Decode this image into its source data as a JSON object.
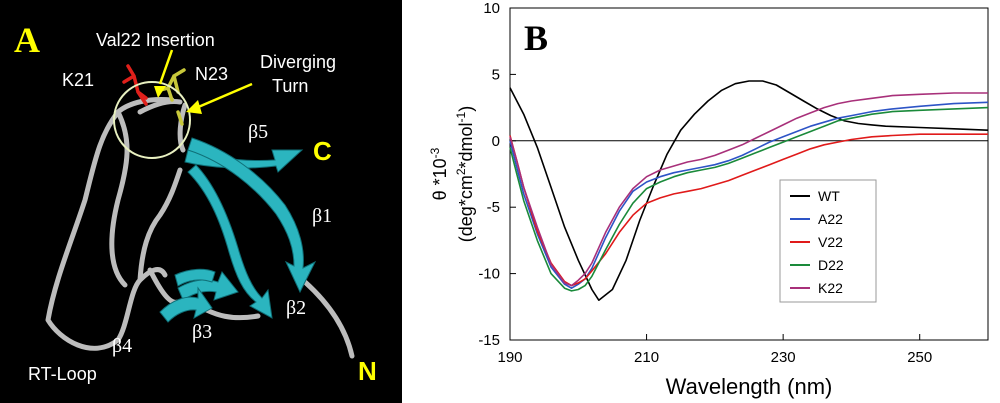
{
  "panel_a": {
    "panel_letter": "A",
    "labels": {
      "insertion": "Val22 Insertion",
      "k21": "K21",
      "n23": "N23",
      "diverging_line1": "Diverging",
      "diverging_line2": "Turn",
      "b5": "β5",
      "b1": "β1",
      "b2": "β2",
      "b3": "β3",
      "b4": "β4",
      "c_term": "C",
      "n_term": "N",
      "rt_loop": "RT-Loop"
    },
    "colors": {
      "background": "#000000",
      "strand": "#2bb5bf",
      "loop": "#bdbdbd",
      "k21_sidechain": "#e0201b",
      "n23_sidechain": "#c8c83a",
      "arrow": "#ffff00",
      "terminus_letters": "#ffff00",
      "circle": "#e8f0c0"
    }
  },
  "chart_data": {
    "type": "line",
    "panel_letter": "B",
    "title": "",
    "xlabel": "Wavelength (nm)",
    "ylabel_line1": "θ *10-3",
    "ylabel_line2": "(deg*cm2*dmol-1)",
    "xlim": [
      190,
      260
    ],
    "ylim": [
      -15,
      10
    ],
    "xticks": [
      190,
      210,
      230,
      250
    ],
    "yticks": [
      -15,
      -10,
      -5,
      0,
      5,
      10
    ],
    "grid": false,
    "legend_position": "center-right",
    "series": [
      {
        "name": "WT",
        "color": "#000000",
        "x": [
          190,
          192,
          194,
          196,
          198,
          200,
          202,
          203,
          205,
          207,
          209,
          211,
          213,
          215,
          217,
          219,
          221,
          223,
          225,
          227,
          229,
          231,
          233,
          235,
          237,
          239,
          241,
          243,
          245,
          250,
          255,
          260
        ],
        "y": [
          4,
          2,
          -0.5,
          -3.5,
          -6.5,
          -9,
          -11.2,
          -12,
          -11.2,
          -9,
          -6,
          -3.4,
          -1,
          0.8,
          2,
          3,
          3.8,
          4.3,
          4.5,
          4.5,
          4.2,
          3.6,
          3,
          2.4,
          1.9,
          1.5,
          1.3,
          1.2,
          1.1,
          1.0,
          0.9,
          0.8
        ]
      },
      {
        "name": "A22",
        "color": "#2d54c6",
        "x": [
          190,
          191,
          192,
          194,
          196,
          198,
          199,
          200,
          201,
          202,
          204,
          206,
          208,
          210,
          212,
          214,
          216,
          218,
          220,
          222,
          224,
          226,
          228,
          230,
          232,
          234,
          236,
          238,
          240,
          243,
          246,
          250,
          255,
          260
        ],
        "y": [
          0,
          -2,
          -4,
          -7,
          -9.5,
          -10.8,
          -11.1,
          -10.8,
          -10.4,
          -9.6,
          -7.3,
          -5.3,
          -3.8,
          -3.1,
          -2.7,
          -2.4,
          -2.2,
          -2,
          -1.8,
          -1.5,
          -1.1,
          -0.6,
          -0.1,
          0.3,
          0.7,
          1.1,
          1.4,
          1.7,
          1.9,
          2.2,
          2.4,
          2.6,
          2.8,
          2.9
        ]
      },
      {
        "name": "V22",
        "color": "#e01a1a",
        "x": [
          190,
          191,
          192,
          194,
          196,
          198,
          199,
          200,
          201,
          202,
          204,
          206,
          208,
          210,
          212,
          214,
          216,
          218,
          220,
          222,
          224,
          226,
          228,
          230,
          232,
          234,
          236,
          238,
          240,
          243,
          246,
          250,
          255,
          260
        ],
        "y": [
          0.4,
          -1.5,
          -3.5,
          -6.8,
          -9.2,
          -10.6,
          -10.9,
          -10.7,
          -10.4,
          -9.8,
          -8.5,
          -6.9,
          -5.6,
          -4.7,
          -4.3,
          -4,
          -3.8,
          -3.6,
          -3.3,
          -3,
          -2.6,
          -2.2,
          -1.8,
          -1.4,
          -1,
          -0.6,
          -0.3,
          -0.1,
          0.1,
          0.3,
          0.4,
          0.5,
          0.5,
          0.5
        ]
      },
      {
        "name": "D22",
        "color": "#1a8a3a",
        "x": [
          190,
          191,
          192,
          194,
          196,
          198,
          199,
          200,
          201,
          202,
          204,
          206,
          208,
          210,
          212,
          214,
          216,
          218,
          220,
          222,
          224,
          226,
          228,
          230,
          232,
          234,
          236,
          238,
          240,
          243,
          246,
          250,
          255,
          260
        ],
        "y": [
          -0.5,
          -2.5,
          -4.5,
          -7.5,
          -10,
          -11.1,
          -11.3,
          -11.2,
          -10.9,
          -10.2,
          -8.2,
          -6.3,
          -4.7,
          -3.6,
          -3.1,
          -2.7,
          -2.4,
          -2.2,
          -2,
          -1.7,
          -1.3,
          -0.9,
          -0.5,
          -0.1,
          0.3,
          0.7,
          1.1,
          1.5,
          1.7,
          2,
          2.2,
          2.3,
          2.4,
          2.5
        ]
      },
      {
        "name": "K22",
        "color": "#a8307a",
        "x": [
          190,
          191,
          192,
          194,
          196,
          198,
          199,
          200,
          201,
          202,
          204,
          206,
          208,
          210,
          212,
          214,
          216,
          218,
          220,
          222,
          224,
          226,
          228,
          230,
          232,
          234,
          236,
          238,
          240,
          243,
          246,
          250,
          255,
          260
        ],
        "y": [
          0.3,
          -1.5,
          -3.5,
          -6.5,
          -9.3,
          -10.7,
          -10.9,
          -10.5,
          -10,
          -9.2,
          -6.9,
          -5,
          -3.6,
          -2.7,
          -2.2,
          -1.9,
          -1.6,
          -1.4,
          -1.1,
          -0.7,
          -0.3,
          0.2,
          0.7,
          1.2,
          1.7,
          2.1,
          2.5,
          2.8,
          3,
          3.2,
          3.4,
          3.5,
          3.6,
          3.6
        ]
      }
    ]
  }
}
